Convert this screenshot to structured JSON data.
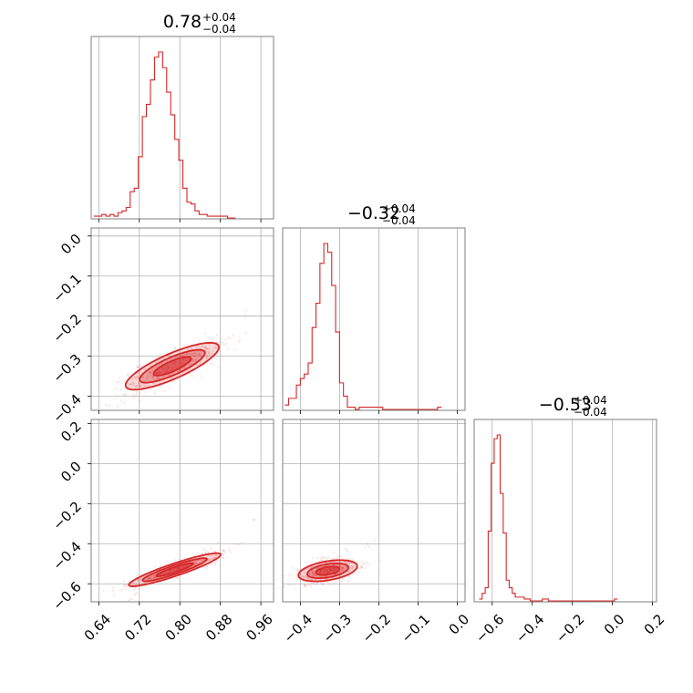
{
  "chart_data": {
    "type": "corner",
    "color": "#d62728",
    "parameters": [
      {
        "title_value": "0.78",
        "title_plus": "+0.04",
        "title_minus": "−0.04",
        "range": [
          0.625,
          0.985
        ],
        "ticks": [
          0.64,
          0.72,
          0.8,
          0.88,
          0.96
        ],
        "tick_labels": [
          "0.64",
          "0.72",
          "0.80",
          "0.88",
          "0.96"
        ],
        "hist_edges_start": 0.63,
        "hist_bin_width": 0.008,
        "hist_counts": [
          1,
          1,
          2,
          1,
          2,
          1,
          3,
          4,
          6,
          15,
          17,
          35,
          58,
          65,
          79,
          92,
          95,
          86,
          72,
          59,
          45,
          33,
          17,
          9,
          8,
          4,
          2,
          2,
          1,
          1,
          1,
          1,
          1,
          0,
          0
        ]
      },
      {
        "title_value": "−0.32",
        "title_plus": "+0.04",
        "title_minus": "−0.04",
        "range": [
          -0.445,
          0.02
        ],
        "ticks": [
          -0.4,
          -0.3,
          -0.2,
          -0.1,
          0.0
        ],
        "tick_labels": [
          "−0.4",
          "−0.3",
          "−0.2",
          "−0.1",
          "0.0"
        ],
        "hist_edges_start": -0.44,
        "hist_bin_width": 0.01,
        "hist_counts": [
          2,
          5,
          5,
          11,
          14,
          16,
          21,
          37,
          48,
          66,
          75,
          71,
          56,
          35,
          12,
          6,
          1,
          1,
          0,
          1,
          1,
          1,
          1,
          1,
          1,
          0,
          0,
          0,
          0,
          0,
          0,
          0,
          0,
          0,
          0,
          0,
          0,
          0,
          0,
          1
        ]
      },
      {
        "title_value": "−0.53",
        "title_plus": "+0.04",
        "title_minus": "−0.04",
        "range": [
          -0.69,
          0.22
        ],
        "ticks": [
          -0.6,
          -0.4,
          -0.2,
          0.0,
          0.2
        ],
        "tick_labels": [
          "−0.6",
          "−0.4",
          "−0.2",
          "0.0",
          "0.2"
        ],
        "hist_edges_start": -0.665,
        "hist_bin_width": 0.015,
        "hist_counts": [
          1,
          4,
          7,
          37,
          73,
          86,
          88,
          57,
          36,
          11,
          7,
          4,
          2,
          2,
          2,
          1,
          1,
          0,
          0,
          0,
          0,
          1,
          1,
          0,
          0,
          0,
          0,
          0,
          0,
          0,
          0,
          0,
          0,
          0,
          0,
          0,
          0,
          0,
          0,
          0,
          0,
          0,
          0,
          0,
          0,
          1
        ]
      }
    ],
    "contours": [
      {
        "x_param": 0,
        "y_param": 1,
        "y_range": [
          -0.435,
          0.02
        ],
        "y_ticks": [
          0.0,
          -0.1,
          -0.2,
          -0.3,
          -0.4
        ],
        "y_tick_labels": [
          "0.0",
          "−0.1",
          "−0.2",
          "−0.3",
          "−0.4"
        ],
        "center": [
          0.785,
          -0.325
        ],
        "semi_axes": [
          0.042,
          0.012
        ],
        "angle_deg": 30,
        "levels": [
          1.0,
          1.75,
          2.5
        ],
        "scatter_extent": [
          0.69,
          0.97,
          -0.43,
          -0.19
        ]
      },
      {
        "x_param": 0,
        "y_param": 2,
        "y_range": [
          -0.69,
          0.22
        ],
        "y_ticks": [
          0.2,
          0.0,
          -0.2,
          -0.4,
          -0.6
        ],
        "y_tick_labels": [
          "0.2",
          "0.0",
          "−0.2",
          "−0.4",
          "−0.6"
        ],
        "center": [
          0.79,
          -0.53
        ],
        "semi_axes": [
          0.048,
          0.01
        ],
        "angle_deg": 42,
        "levels": [
          1.0,
          1.75,
          2.5
        ],
        "scatter_extent": [
          0.69,
          0.985,
          -0.66,
          -0.14
        ]
      },
      {
        "x_param": 1,
        "y_param": 2,
        "center": [
          -0.33,
          -0.535
        ],
        "semi_axes": [
          0.032,
          0.018
        ],
        "angle_deg": 25,
        "levels": [
          1.0,
          1.75,
          2.5
        ],
        "scatter_extent": [
          -0.43,
          -0.19,
          -0.67,
          -0.34
        ]
      }
    ]
  }
}
